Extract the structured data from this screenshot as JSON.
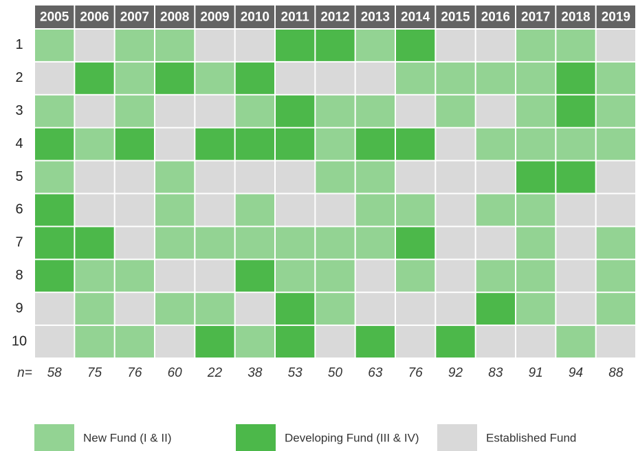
{
  "columns": [
    "2005",
    "2006",
    "2007",
    "2008",
    "2009",
    "2010",
    "2011",
    "2012",
    "2013",
    "2014",
    "2015",
    "2016",
    "2017",
    "2018",
    "2019"
  ],
  "rows": [
    {
      "label": "1",
      "cells": [
        0,
        2,
        0,
        0,
        2,
        2,
        1,
        1,
        0,
        1,
        2,
        2,
        0,
        0,
        2
      ]
    },
    {
      "label": "2",
      "cells": [
        2,
        1,
        0,
        1,
        0,
        1,
        2,
        2,
        2,
        0,
        0,
        0,
        0,
        1,
        0
      ]
    },
    {
      "label": "3",
      "cells": [
        0,
        2,
        0,
        2,
        2,
        0,
        1,
        0,
        0,
        2,
        0,
        2,
        0,
        1,
        0
      ]
    },
    {
      "label": "4",
      "cells": [
        1,
        0,
        1,
        2,
        1,
        1,
        1,
        0,
        1,
        1,
        2,
        0,
        0,
        0,
        0
      ]
    },
    {
      "label": "5",
      "cells": [
        0,
        2,
        2,
        0,
        2,
        2,
        2,
        0,
        0,
        2,
        2,
        2,
        1,
        1,
        2
      ]
    },
    {
      "label": "6",
      "cells": [
        1,
        2,
        2,
        0,
        2,
        0,
        2,
        2,
        0,
        0,
        2,
        0,
        0,
        2,
        2
      ]
    },
    {
      "label": "7",
      "cells": [
        1,
        1,
        2,
        0,
        0,
        0,
        0,
        0,
        0,
        1,
        2,
        2,
        0,
        2,
        0
      ]
    },
    {
      "label": "8",
      "cells": [
        1,
        0,
        0,
        2,
        2,
        1,
        0,
        0,
        2,
        0,
        2,
        0,
        0,
        2,
        0
      ]
    },
    {
      "label": "9",
      "cells": [
        2,
        0,
        2,
        0,
        0,
        2,
        1,
        0,
        2,
        2,
        2,
        1,
        0,
        2,
        0
      ]
    },
    {
      "label": "10",
      "cells": [
        2,
        0,
        0,
        2,
        1,
        0,
        1,
        2,
        1,
        2,
        1,
        2,
        2,
        0,
        2
      ]
    }
  ],
  "n_label": "n=",
  "n": [
    "58",
    "75",
    "76",
    "60",
    "22",
    "38",
    "53",
    "50",
    "63",
    "76",
    "92",
    "83",
    "91",
    "94",
    "88"
  ],
  "legend": [
    {
      "label": "New Fund (I & II)",
      "color": "#93d393"
    },
    {
      "label": "Developing Fund (III & IV)",
      "color": "#4cb84a"
    },
    {
      "label": "Established Fund",
      "color": "#d9d9d9"
    }
  ]
}
